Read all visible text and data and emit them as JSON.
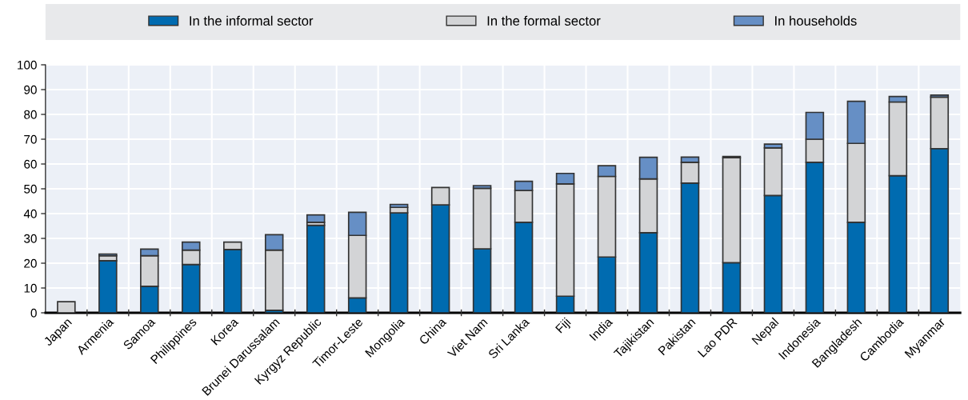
{
  "chart_data": {
    "type": "bar",
    "stacked": true,
    "categories": [
      "Japan",
      "Armenia",
      "Samoa",
      "Philippines",
      "Korea",
      "Brunei Darussalam",
      "Kyrgyz Republic",
      "Timor-Leste",
      "Mongolia",
      "China",
      "Viet Nam",
      "Sri Lanka",
      "Fiji",
      "India",
      "Tajikistan",
      "Pakistan",
      "Lao PDR",
      "Nepal",
      "Indonesia",
      "Bangladesh",
      "Cambodia",
      "Myanmar"
    ],
    "series": [
      {
        "name": "In the informal sector",
        "color": "#006bb0",
        "values": [
          null,
          21,
          10.7,
          19.5,
          25.5,
          1,
          35.3,
          6,
          40.3,
          43.5,
          25.8,
          36.5,
          6.7,
          22.5,
          32.3,
          52.3,
          20.2,
          47.3,
          60.7,
          36.5,
          55.3,
          66.2
        ]
      },
      {
        "name": "In the formal sector",
        "color": "#d3d4d6",
        "values": [
          4.5,
          2,
          12.3,
          5.8,
          3,
          24.3,
          1.2,
          25.2,
          2.2,
          7,
          24.4,
          12.8,
          45.3,
          32.5,
          21.7,
          8.4,
          42.3,
          19.2,
          9.3,
          31.8,
          29.7,
          20.8
        ]
      },
      {
        "name": "In households",
        "color": "#668fc5",
        "values": [
          null,
          0.7,
          2.7,
          3.2,
          null,
          6.2,
          3,
          9.3,
          1.2,
          null,
          1.1,
          3.7,
          4.2,
          4.3,
          8.7,
          2.1,
          0.5,
          1.5,
          10.8,
          17,
          2.2,
          0.8
        ]
      }
    ],
    "ylim": [
      0,
      100
    ],
    "yticks": [
      0,
      10,
      20,
      30,
      40,
      50,
      60,
      70,
      80,
      90,
      100
    ],
    "grid": true,
    "legend": "top"
  }
}
